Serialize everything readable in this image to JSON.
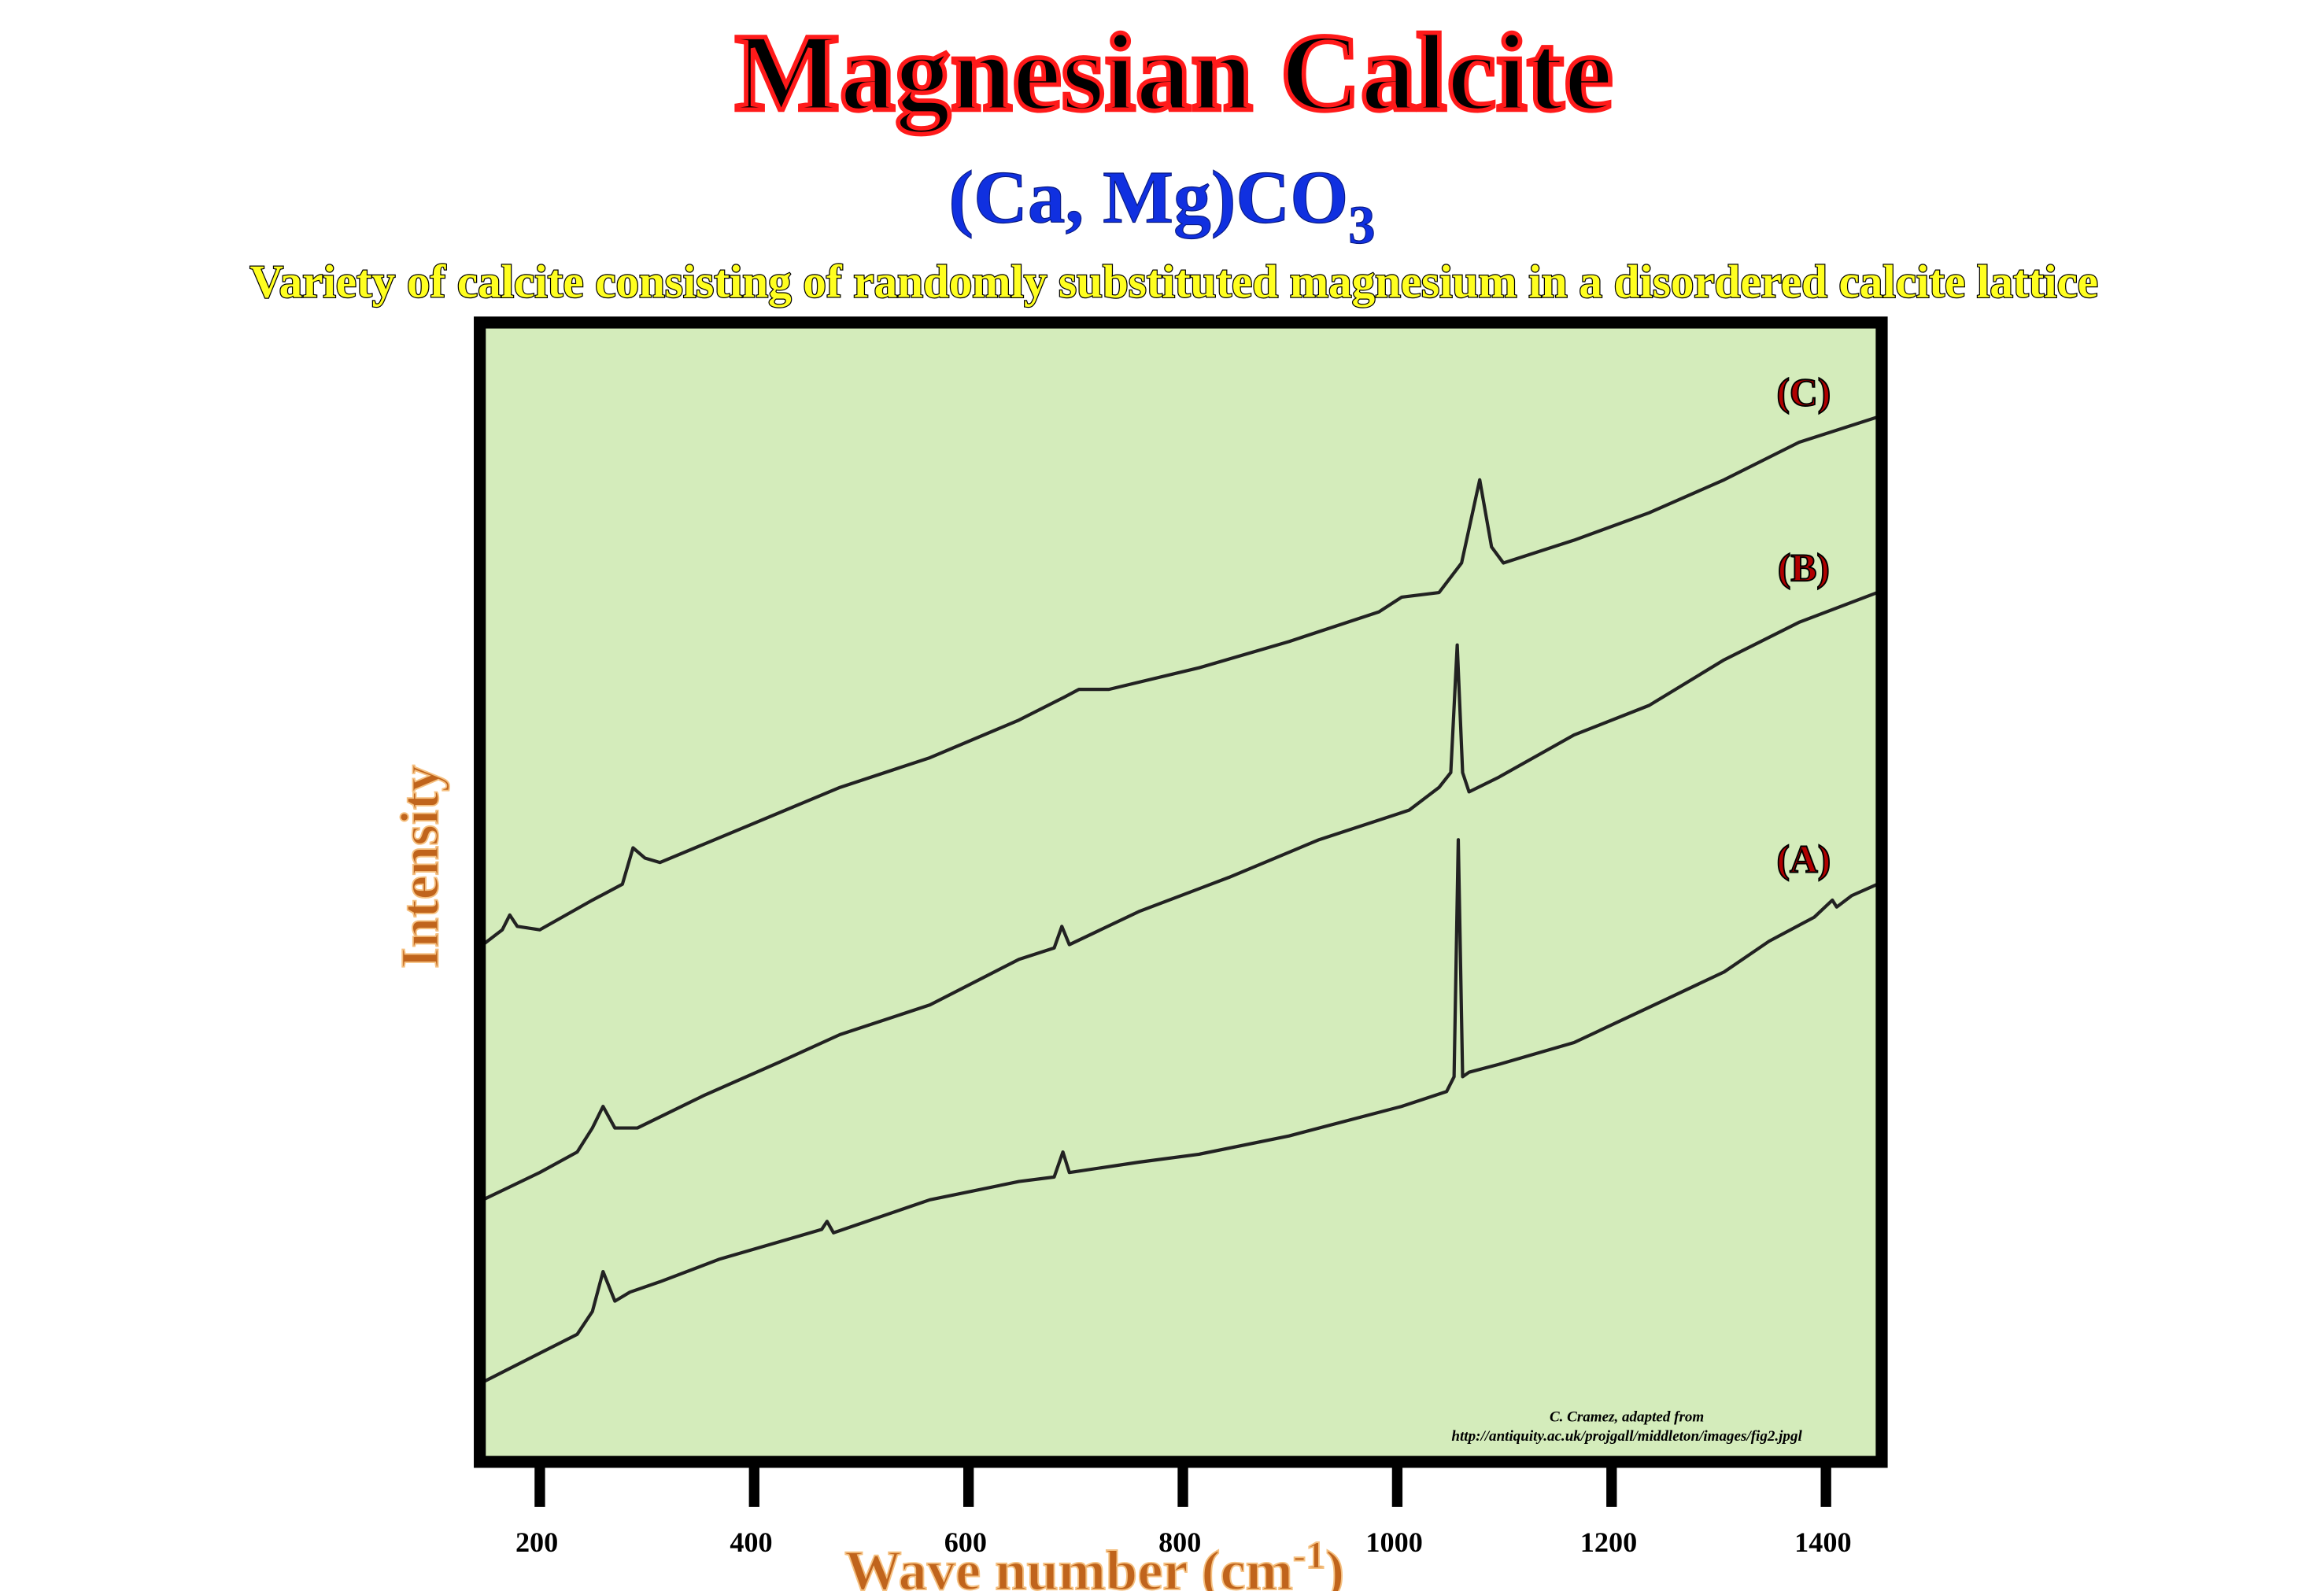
{
  "chart_data": {
    "type": "line",
    "title": "Magnesian Calcite",
    "subtitle": {
      "text": "(Ca, Mg)CO",
      "subscript": "3"
    },
    "description": "Variety of calcite consisting of randomly substituted magnesium in a disordered calcite lattice",
    "x_label": {
      "text": "Wave number (cm",
      "superscript": "-1",
      "close": ")"
    },
    "y_label": "Intensity",
    "credit": [
      "C. Cramez, adapted from",
      "http://antiquity.ac.uk/projgall/middleton/images/fig2.jpgl"
    ],
    "xlim": [
      144,
      1452
    ],
    "xticks": [
      200,
      400,
      600,
      800,
      1000,
      1200,
      1400
    ],
    "ylim": [
      0,
      100
    ],
    "background": "#d4ecbb",
    "series": [
      {
        "name": "(A)",
        "color": "#222222",
        "x": [
          147,
          193,
          235,
          249,
          259,
          270,
          284,
          312,
          368,
          463,
          468,
          474,
          564,
          647,
          680,
          688,
          694,
          759,
          815,
          899,
          1004,
          1046,
          1053,
          1057,
          1061,
          1067,
          1095,
          1165,
          1235,
          1305,
          1347,
          1389,
          1406,
          1410,
          1424,
          1448
        ],
        "values": [
          7.0,
          9.2,
          11.2,
          13.2,
          16.7,
          14.1,
          14.9,
          15.8,
          17.8,
          20.4,
          21.1,
          20.1,
          23.0,
          24.6,
          25.0,
          27.2,
          25.4,
          26.3,
          27.0,
          28.6,
          31.2,
          32.5,
          33.8,
          54.6,
          33.8,
          34.2,
          34.9,
          36.8,
          39.9,
          43.0,
          45.7,
          47.8,
          49.3,
          48.7,
          49.7,
          50.7
        ]
      },
      {
        "name": "(B)",
        "color": "#222222",
        "x": [
          147,
          200,
          235,
          249,
          259,
          270,
          291,
          354,
          424,
          480,
          564,
          647,
          680,
          687,
          694,
          759,
          843,
          927,
          1011,
          1039,
          1050,
          1056,
          1061,
          1067,
          1095,
          1165,
          1235,
          1305,
          1375,
          1448
        ],
        "values": [
          23.0,
          25.4,
          27.2,
          29.3,
          31.2,
          29.3,
          29.3,
          32.2,
          35.1,
          37.5,
          40.1,
          44.1,
          45.1,
          47.0,
          45.4,
          48.3,
          51.3,
          54.6,
          57.2,
          59.2,
          60.5,
          71.7,
          60.5,
          58.8,
          60.1,
          63.8,
          66.4,
          70.4,
          73.7,
          76.3
        ]
      },
      {
        "name": "(C)",
        "color": "#222222",
        "x": [
          147,
          165,
          172,
          179,
          200,
          249,
          277,
          287,
          298,
          312,
          396,
          480,
          564,
          647,
          689,
          703,
          731,
          815,
          899,
          983,
          1004,
          1039,
          1060,
          1077,
          1088,
          1099,
          1165,
          1235,
          1305,
          1375,
          1448
        ],
        "values": [
          45.4,
          46.7,
          48.0,
          47.0,
          46.7,
          49.3,
          50.7,
          53.9,
          53.0,
          52.6,
          55.9,
          59.2,
          61.8,
          65.1,
          67.1,
          67.8,
          67.8,
          69.7,
          72.0,
          74.6,
          75.9,
          76.3,
          78.9,
          86.2,
          80.3,
          78.9,
          80.9,
          83.3,
          86.2,
          89.5,
          91.7
        ]
      }
    ]
  }
}
